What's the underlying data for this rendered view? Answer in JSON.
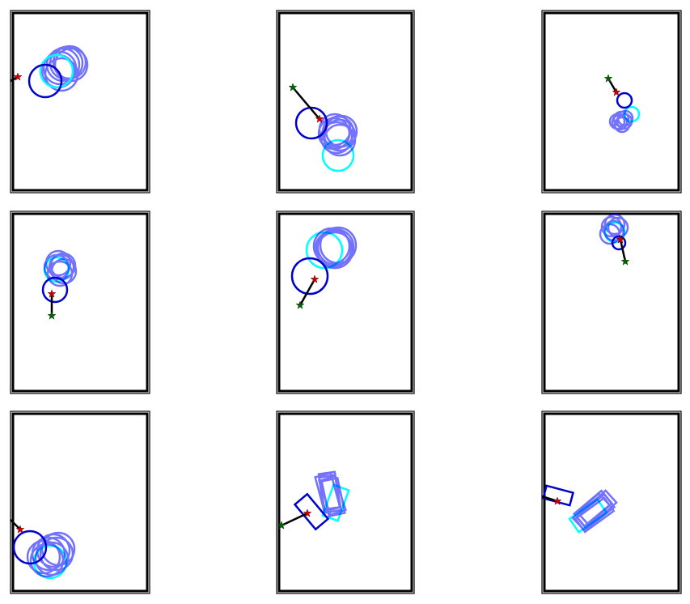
{
  "colors": {
    "frame": "#000000",
    "predicted_shape": "#0000ff",
    "goal_shape": "#00ffff",
    "start_shape": "#0000cd",
    "start_marker": "#006400",
    "end_marker": "#cc0000",
    "trajectory": "#000000",
    "background": "#ffffff"
  },
  "panels": [
    {
      "id": "r1c1",
      "shape": "circle"
    },
    {
      "id": "r1c2",
      "shape": "circle"
    },
    {
      "id": "r1c3",
      "shape": "circle"
    },
    {
      "id": "r2c1",
      "shape": "circle"
    },
    {
      "id": "r2c2",
      "shape": "circle"
    },
    {
      "id": "r2c3",
      "shape": "circle"
    },
    {
      "id": "r3c1",
      "shape": "circle"
    },
    {
      "id": "r3c2",
      "shape": "rectangle"
    },
    {
      "id": "r3c3",
      "shape": "rectangle"
    }
  ]
}
